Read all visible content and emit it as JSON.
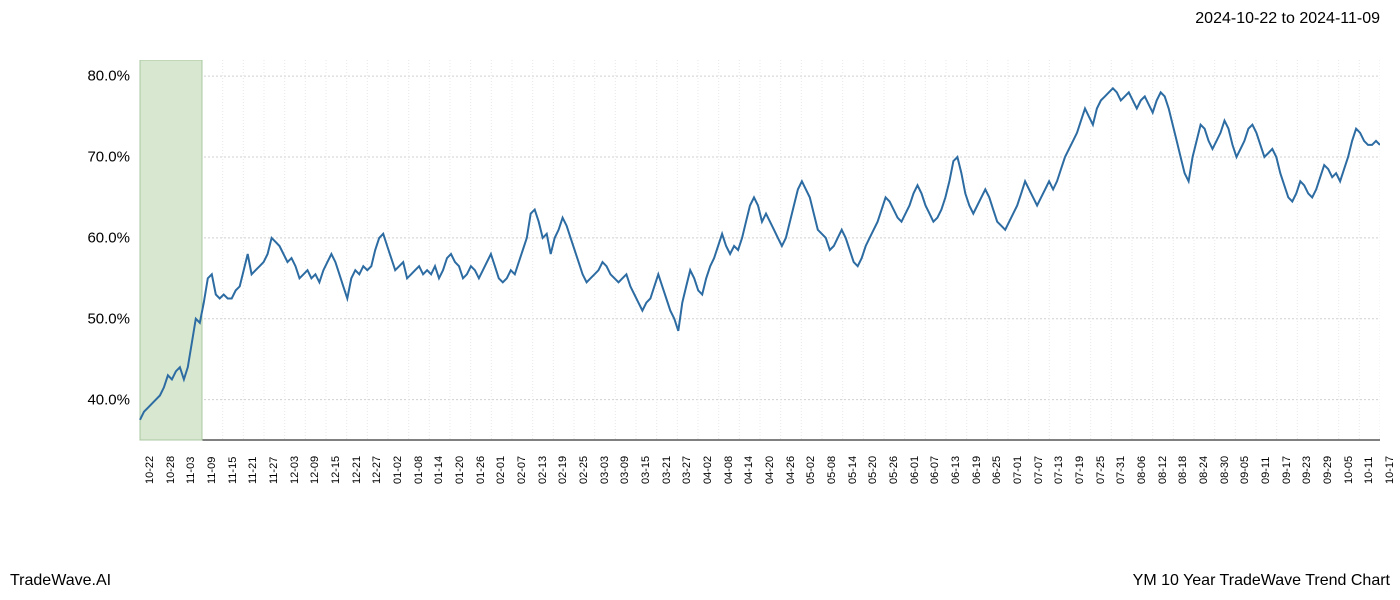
{
  "date_range": "2024-10-22 to 2024-11-09",
  "footer_left": "TradeWave.AI",
  "footer_right": "YM 10 Year TradeWave Trend Chart",
  "chart": {
    "type": "line",
    "line_color": "#2d6ca2",
    "line_width": 2,
    "background_color": "#ffffff",
    "grid_color_major": "#d0d0d0",
    "grid_color_minor": "#e8e8e8",
    "highlight_color": "#d8e8d0",
    "highlight_border": "#a8c8a0",
    "text_color": "#000000",
    "y_axis": {
      "min": 35,
      "max": 82,
      "ticks": [
        40,
        50,
        60,
        70,
        80
      ],
      "tick_labels": [
        "40.0%",
        "50.0%",
        "60.0%",
        "70.0%",
        "80.0%"
      ],
      "label_fontsize": 15
    },
    "x_axis": {
      "tick_labels": [
        "10-22",
        "10-28",
        "11-03",
        "11-09",
        "11-15",
        "11-21",
        "11-27",
        "12-03",
        "12-09",
        "12-15",
        "12-21",
        "12-27",
        "01-02",
        "01-08",
        "01-14",
        "01-20",
        "01-26",
        "02-01",
        "02-07",
        "02-13",
        "02-19",
        "02-25",
        "03-03",
        "03-09",
        "03-15",
        "03-21",
        "03-27",
        "04-02",
        "04-08",
        "04-14",
        "04-20",
        "04-26",
        "05-02",
        "05-08",
        "05-14",
        "05-20",
        "05-26",
        "06-01",
        "06-07",
        "06-13",
        "06-19",
        "06-25",
        "07-01",
        "07-07",
        "07-13",
        "07-19",
        "07-25",
        "07-31",
        "08-06",
        "08-12",
        "08-18",
        "08-24",
        "08-30",
        "09-05",
        "09-11",
        "09-17",
        "09-23",
        "09-29",
        "10-05",
        "10-11",
        "10-17"
      ],
      "label_fontsize": 11,
      "rotation": -90
    },
    "highlight_region": {
      "start_index": 0,
      "end_index": 3
    },
    "series": {
      "values": [
        37.5,
        38.5,
        39,
        39.5,
        40,
        40.5,
        41.5,
        43,
        42.5,
        43.5,
        44,
        42.5,
        44,
        47,
        50,
        49.5,
        52,
        55,
        55.5,
        53,
        52.5,
        53,
        52.5,
        52.5,
        53.5,
        54,
        56,
        58,
        55.5,
        56,
        56.5,
        57,
        58,
        60,
        59.5,
        59,
        58,
        57,
        57.5,
        56.5,
        55,
        55.5,
        56,
        55,
        55.5,
        54.5,
        56,
        57,
        58,
        57,
        55.5,
        54,
        52.5,
        55,
        56,
        55.5,
        56.5,
        56,
        56.5,
        58.5,
        60,
        60.5,
        59,
        57.5,
        56,
        56.5,
        57,
        55,
        55.5,
        56,
        56.5,
        55.5,
        56,
        55.5,
        56.5,
        55,
        56,
        57.5,
        58,
        57,
        56.5,
        55,
        55.5,
        56.5,
        56,
        55,
        56,
        57,
        58,
        56.5,
        55,
        54.5,
        55,
        56,
        55.5,
        57,
        58.5,
        60,
        63,
        63.5,
        62,
        60,
        60.5,
        58,
        60,
        61,
        62.5,
        61.5,
        60,
        58.5,
        57,
        55.5,
        54.5,
        55,
        55.5,
        56,
        57,
        56.5,
        55.5,
        55,
        54.5,
        55,
        55.5,
        54,
        53,
        52,
        51,
        52,
        52.5,
        54,
        55.5,
        54,
        52.5,
        51,
        50,
        48.5,
        52,
        54,
        56,
        55,
        53.5,
        53,
        55,
        56.5,
        57.5,
        59,
        60.5,
        59,
        58,
        59,
        58.5,
        60,
        62,
        64,
        65,
        64,
        62,
        63,
        62,
        61,
        60,
        59,
        60,
        62,
        64,
        66,
        67,
        66,
        65,
        63,
        61,
        60.5,
        60,
        58.5,
        59,
        60,
        61,
        60,
        58.5,
        57,
        56.5,
        57.5,
        59,
        60,
        61,
        62,
        63.5,
        65,
        64.5,
        63.5,
        62.5,
        62,
        63,
        64,
        65.5,
        66.5,
        65.5,
        64,
        63,
        62,
        62.5,
        63.5,
        65,
        67,
        69.5,
        70,
        68,
        65.5,
        64,
        63,
        64,
        65,
        66,
        65,
        63.5,
        62,
        61.5,
        61,
        62,
        63,
        64,
        65.5,
        67,
        66,
        65,
        64,
        65,
        66,
        67,
        66,
        67,
        68.5,
        70,
        71,
        72,
        73,
        74.5,
        76,
        75,
        74,
        76,
        77,
        77.5,
        78,
        78.5,
        78,
        77,
        77.5,
        78,
        77,
        76,
        77,
        77.5,
        76.5,
        75.5,
        77,
        78,
        77.5,
        76,
        74,
        72,
        70,
        68,
        67,
        70,
        72,
        74,
        73.5,
        72,
        71,
        72,
        73,
        74.5,
        73.5,
        71.5,
        70,
        71,
        72,
        73.5,
        74,
        73,
        71.5,
        70,
        70.5,
        71,
        70,
        68,
        66.5,
        65,
        64.5,
        65.5,
        67,
        66.5,
        65.5,
        65,
        66,
        67.5,
        69,
        68.5,
        67.5,
        68,
        67,
        68.5,
        70,
        72,
        73.5,
        73,
        72,
        71.5,
        71.5,
        72,
        71.5
      ]
    }
  }
}
